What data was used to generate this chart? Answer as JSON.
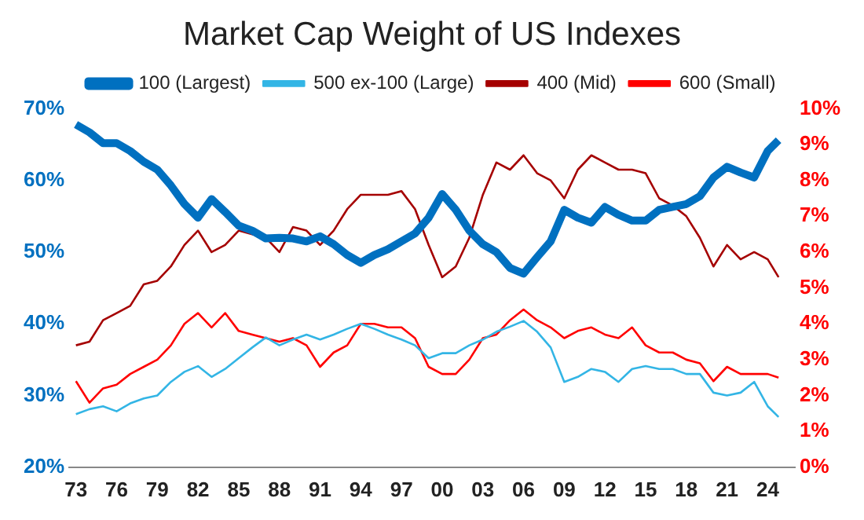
{
  "chart_data": {
    "type": "line",
    "title": "Market Cap Weight of US Indexes",
    "x": [
      1973,
      1974,
      1975,
      1976,
      1977,
      1978,
      1979,
      1980,
      1981,
      1982,
      1983,
      1984,
      1985,
      1986,
      1987,
      1988,
      1989,
      1990,
      1991,
      1992,
      1993,
      1994,
      1995,
      1996,
      1997,
      1998,
      1999,
      2000,
      2001,
      2002,
      2003,
      2004,
      2005,
      2006,
      2007,
      2008,
      2009,
      2010,
      2011,
      2012,
      2013,
      2014,
      2015,
      2016,
      2017,
      2018,
      2019,
      2020,
      2021,
      2022,
      2023,
      2024,
      2024.8
    ],
    "series": [
      {
        "name": "100 (Largest)",
        "color": "#0070c0",
        "values": [
          67.8,
          66.7,
          65.2,
          65.2,
          64.1,
          62.6,
          61.5,
          59.3,
          56.7,
          54.8,
          57.4,
          55.6,
          53.7,
          53,
          51.9,
          52,
          51.9,
          51.5,
          52.2,
          51.1,
          49.6,
          48.5,
          49.6,
          50.4,
          51.5,
          52.6,
          54.8,
          58.1,
          55.9,
          53,
          51.1,
          50,
          47.8,
          47,
          49.3,
          51.5,
          55.9,
          54.8,
          54.1,
          56.3,
          55.2,
          54.4,
          54.4,
          55.9,
          56.3,
          56.7,
          57.8,
          60.4,
          61.9,
          61.1,
          60.4,
          64.1,
          65.6
        ]
      },
      {
        "name": "500 ex-100 (Large)",
        "color": "#33b5e5",
        "values": [
          27.4,
          28.1,
          28.5,
          27.8,
          28.9,
          29.6,
          30,
          31.9,
          33.3,
          34.1,
          32.6,
          33.7,
          35.2,
          36.7,
          38.1,
          37,
          37.8,
          38.5,
          37.8,
          38.5,
          39.3,
          40,
          39.3,
          38.5,
          37.8,
          37,
          35.2,
          35.9,
          35.9,
          37,
          37.8,
          38.9,
          39.6,
          40.4,
          38.9,
          36.7,
          31.9,
          32.6,
          33.7,
          33.3,
          31.9,
          33.7,
          34.1,
          33.7,
          33.7,
          33,
          33,
          30.4,
          30,
          30.4,
          31.9,
          28.5,
          27
        ]
      },
      {
        "name": "400 (Mid)",
        "color": "#a50000",
        "axis": "y2",
        "values": [
          3.4,
          3.5,
          4.1,
          4.3,
          4.5,
          5.1,
          5.2,
          5.6,
          6.2,
          6.6,
          6,
          6.2,
          6.6,
          6.5,
          6.4,
          6,
          6.7,
          6.6,
          6.2,
          6.6,
          7.2,
          7.6,
          7.6,
          7.6,
          7.7,
          7.2,
          6.2,
          5.3,
          5.6,
          6.4,
          7.6,
          8.5,
          8.3,
          8.7,
          8.2,
          8,
          7.5,
          8.3,
          8.7,
          8.5,
          8.3,
          8.3,
          8.2,
          7.5,
          7.3,
          7,
          6.4,
          5.6,
          6.2,
          5.8,
          6,
          5.8,
          5.3
        ]
      },
      {
        "name": "600 (Small)",
        "color": "#ff0000",
        "axis": "y2",
        "values": [
          2.4,
          1.8,
          2.2,
          2.3,
          2.6,
          2.8,
          3,
          3.4,
          4,
          4.3,
          3.9,
          4.3,
          3.8,
          3.7,
          3.6,
          3.5,
          3.6,
          3.4,
          2.8,
          3.2,
          3.4,
          4,
          4,
          3.9,
          3.9,
          3.6,
          2.8,
          2.6,
          2.6,
          3,
          3.6,
          3.7,
          4.1,
          4.4,
          4.1,
          3.9,
          3.6,
          3.8,
          3.9,
          3.7,
          3.6,
          3.9,
          3.4,
          3.2,
          3.2,
          3,
          2.9,
          2.4,
          2.8,
          2.6,
          2.6,
          2.6,
          2.5
        ]
      }
    ],
    "xlim": [
      1972.5,
      2026
    ],
    "xticks": [
      {
        "value": 1973,
        "label": "73"
      },
      {
        "value": 1976,
        "label": "76"
      },
      {
        "value": 1979,
        "label": "79"
      },
      {
        "value": 1982,
        "label": "82"
      },
      {
        "value": 1985,
        "label": "85"
      },
      {
        "value": 1988,
        "label": "88"
      },
      {
        "value": 1991,
        "label": "91"
      },
      {
        "value": 1994,
        "label": "94"
      },
      {
        "value": 1997,
        "label": "97"
      },
      {
        "value": 2000,
        "label": "00"
      },
      {
        "value": 2003,
        "label": "03"
      },
      {
        "value": 2006,
        "label": "06"
      },
      {
        "value": 2009,
        "label": "09"
      },
      {
        "value": 2012,
        "label": "12"
      },
      {
        "value": 2015,
        "label": "15"
      },
      {
        "value": 2018,
        "label": "18"
      },
      {
        "value": 2021,
        "label": "21"
      },
      {
        "value": 2024,
        "label": "24"
      }
    ],
    "ylim": [
      20,
      70
    ],
    "yticks": [
      {
        "value": 20,
        "label": "20%"
      },
      {
        "value": 30,
        "label": "30%"
      },
      {
        "value": 40,
        "label": "40%"
      },
      {
        "value": 50,
        "label": "50%"
      },
      {
        "value": 60,
        "label": "60%"
      },
      {
        "value": 70,
        "label": "70%"
      }
    ],
    "y2lim": [
      0,
      10
    ],
    "y2ticks": [
      {
        "value": 0,
        "label": "0%"
      },
      {
        "value": 1,
        "label": "1%"
      },
      {
        "value": 2,
        "label": "2%"
      },
      {
        "value": 3,
        "label": "3%"
      },
      {
        "value": 4,
        "label": "4%"
      },
      {
        "value": 5,
        "label": "5%"
      },
      {
        "value": 6,
        "label": "6%"
      },
      {
        "value": 7,
        "label": "7%"
      },
      {
        "value": 8,
        "label": "8%"
      },
      {
        "value": 9,
        "label": "9%"
      },
      {
        "value": 10,
        "label": "10%"
      }
    ],
    "grid": false,
    "legend": "top",
    "marker": "none",
    "line_style": "solid"
  }
}
